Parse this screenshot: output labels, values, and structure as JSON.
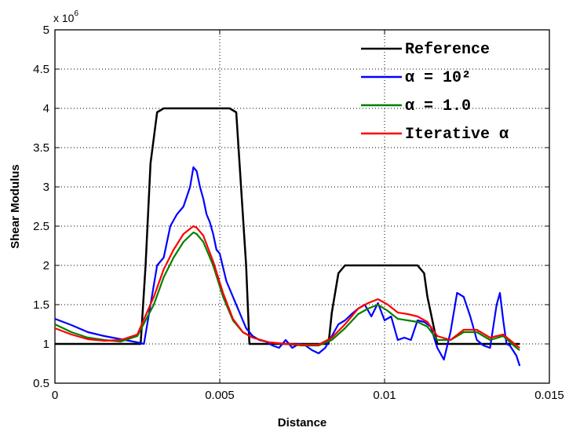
{
  "chart_data": {
    "type": "line",
    "xlabel": "Distance",
    "ylabel": "Shear Modulus",
    "y_exponent_label": "x 10",
    "y_exponent_power": "6",
    "xlim": [
      0,
      0.015
    ],
    "ylim": [
      0.5,
      5
    ],
    "xticks": [
      0,
      0.005,
      0.01,
      0.015
    ],
    "xtick_labels": [
      "0",
      "0.005",
      "0.01",
      "0.015"
    ],
    "yticks": [
      0.5,
      1,
      1.5,
      2,
      2.5,
      3,
      3.5,
      4,
      4.5,
      5
    ],
    "ytick_labels": [
      "0.5",
      "1",
      "1.5",
      "2",
      "2.5",
      "3",
      "3.5",
      "4",
      "4.5",
      "5"
    ],
    "grid": true,
    "legend_position": "top-right",
    "series": [
      {
        "name": "Reference",
        "color": "#000000",
        "x": [
          0,
          0.0026,
          0.00275,
          0.0029,
          0.0031,
          0.0033,
          0.0053,
          0.0055,
          0.0056,
          0.0058,
          0.0059,
          0.0083,
          0.0084,
          0.0086,
          0.0088,
          0.011,
          0.0112,
          0.0113,
          0.0115,
          0.0116,
          0.0141
        ],
        "values": [
          1.0,
          1.0,
          2.0,
          3.3,
          3.95,
          4.0,
          4.0,
          3.95,
          3.3,
          2.0,
          1.0,
          1.0,
          1.4,
          1.9,
          2.0,
          2.0,
          1.9,
          1.6,
          1.2,
          1.0,
          1.0
        ]
      },
      {
        "name": "α = 10²",
        "color": "#0000ff",
        "x": [
          0,
          0.0005,
          0.001,
          0.0015,
          0.002,
          0.0025,
          0.0027,
          0.0029,
          0.0031,
          0.0033,
          0.0035,
          0.0037,
          0.0039,
          0.0041,
          0.0042,
          0.0043,
          0.0044,
          0.0045,
          0.0046,
          0.0047,
          0.0048,
          0.0049,
          0.005,
          0.0052,
          0.0054,
          0.0056,
          0.0058,
          0.006,
          0.0062,
          0.0064,
          0.0066,
          0.0068,
          0.007,
          0.0072,
          0.0074,
          0.0076,
          0.0078,
          0.008,
          0.0082,
          0.0084,
          0.0086,
          0.0088,
          0.009,
          0.0092,
          0.0094,
          0.0096,
          0.0098,
          0.01,
          0.0102,
          0.0104,
          0.0106,
          0.0108,
          0.011,
          0.0112,
          0.0114,
          0.0116,
          0.0118,
          0.012,
          0.0122,
          0.0124,
          0.0126,
          0.0128,
          0.013,
          0.0132,
          0.0134,
          0.0135,
          0.0136,
          0.0137,
          0.0138,
          0.014,
          0.0141
        ],
        "values": [
          1.32,
          1.24,
          1.15,
          1.1,
          1.06,
          1.02,
          1.0,
          1.5,
          2.0,
          2.1,
          2.5,
          2.65,
          2.75,
          3.0,
          3.25,
          3.2,
          3.0,
          2.85,
          2.65,
          2.55,
          2.4,
          2.2,
          2.15,
          1.8,
          1.6,
          1.4,
          1.2,
          1.1,
          1.05,
          1.03,
          0.98,
          0.95,
          1.05,
          0.95,
          1.0,
          0.98,
          0.92,
          0.88,
          0.95,
          1.1,
          1.25,
          1.3,
          1.38,
          1.45,
          1.5,
          1.35,
          1.52,
          1.3,
          1.35,
          1.05,
          1.08,
          1.05,
          1.3,
          1.28,
          1.22,
          0.95,
          0.8,
          1.15,
          1.65,
          1.6,
          1.35,
          1.05,
          0.98,
          0.95,
          1.5,
          1.65,
          1.3,
          1.0,
          0.98,
          0.85,
          0.72
        ]
      },
      {
        "name": "α = 1.0",
        "color": "#008000",
        "x": [
          0,
          0.0005,
          0.001,
          0.0015,
          0.002,
          0.0025,
          0.003,
          0.0033,
          0.0036,
          0.0039,
          0.0042,
          0.0043,
          0.0045,
          0.0048,
          0.0051,
          0.0054,
          0.0057,
          0.006,
          0.0065,
          0.007,
          0.0075,
          0.008,
          0.0084,
          0.0088,
          0.0092,
          0.0095,
          0.0098,
          0.0101,
          0.0104,
          0.0107,
          0.011,
          0.0113,
          0.0116,
          0.012,
          0.0124,
          0.0128,
          0.0132,
          0.0136,
          0.014,
          0.0141
        ],
        "values": [
          1.25,
          1.15,
          1.08,
          1.05,
          1.03,
          1.1,
          1.5,
          1.85,
          2.1,
          2.3,
          2.42,
          2.4,
          2.3,
          2.0,
          1.6,
          1.3,
          1.15,
          1.08,
          1.02,
          1.0,
          0.98,
          0.98,
          1.05,
          1.2,
          1.38,
          1.45,
          1.5,
          1.42,
          1.32,
          1.3,
          1.28,
          1.22,
          1.05,
          1.05,
          1.15,
          1.15,
          1.05,
          1.1,
          0.95,
          0.92
        ]
      },
      {
        "name": "Iterative α",
        "color": "#ff0000",
        "x": [
          0,
          0.0005,
          0.001,
          0.0015,
          0.002,
          0.0025,
          0.003,
          0.0033,
          0.0036,
          0.0039,
          0.0042,
          0.0043,
          0.0045,
          0.0048,
          0.0051,
          0.0054,
          0.0057,
          0.006,
          0.0065,
          0.007,
          0.0075,
          0.008,
          0.0084,
          0.0088,
          0.0092,
          0.0095,
          0.0098,
          0.0101,
          0.0104,
          0.0107,
          0.011,
          0.0113,
          0.0116,
          0.012,
          0.0124,
          0.0128,
          0.0132,
          0.0136,
          0.014,
          0.0141
        ],
        "values": [
          1.2,
          1.12,
          1.06,
          1.04,
          1.05,
          1.12,
          1.6,
          1.95,
          2.2,
          2.4,
          2.5,
          2.48,
          2.38,
          2.05,
          1.65,
          1.32,
          1.15,
          1.08,
          1.02,
          1.0,
          0.99,
          0.99,
          1.08,
          1.25,
          1.45,
          1.52,
          1.57,
          1.5,
          1.4,
          1.38,
          1.35,
          1.28,
          1.1,
          1.05,
          1.18,
          1.18,
          1.08,
          1.12,
          0.98,
          0.95
        ]
      }
    ]
  }
}
